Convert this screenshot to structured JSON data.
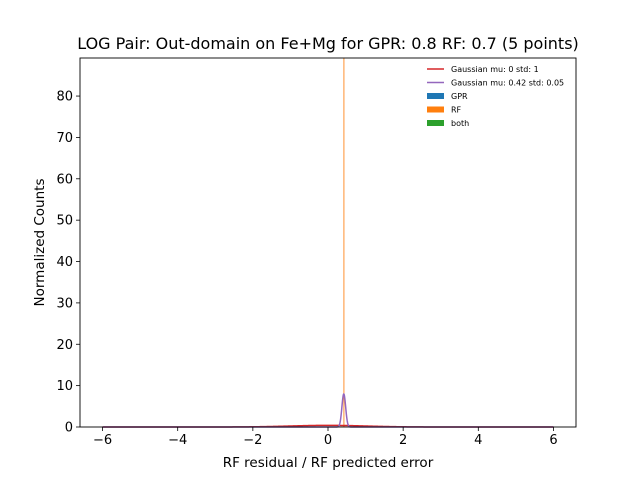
{
  "chart_data": {
    "type": "line",
    "title": "LOG Pair: Out-domain on Fe+Mg for GPR: 0.8 RF: 0.7 (5 points)",
    "xlabel": "RF residual / RF predicted error",
    "ylabel": "Normalized Counts",
    "xlim": [
      -6.6,
      6.6
    ],
    "ylim": [
      0,
      89.2
    ],
    "x_ticks": [
      -6,
      -4,
      -2,
      0,
      2,
      4,
      6
    ],
    "x_tick_labels": [
      "−6",
      "−4",
      "−2",
      "0",
      "2",
      "4",
      "6"
    ],
    "y_ticks": [
      0,
      10,
      20,
      30,
      40,
      50,
      60,
      70,
      80
    ],
    "y_tick_labels": [
      "0",
      "10",
      "20",
      "30",
      "40",
      "50",
      "60",
      "70",
      "80"
    ],
    "grid": false,
    "legend_position": "top-right",
    "series": [
      {
        "name": "Gaussian mu: 0 std: 1",
        "kind": "gaussian",
        "mu": 0,
        "std": 1,
        "color": "#d62728"
      },
      {
        "name": "Gaussian mu: 0.42 std: 0.05",
        "kind": "gaussian",
        "mu": 0.42,
        "std": 0.05,
        "color": "#9467bd"
      },
      {
        "name": "GPR",
        "kind": "histogram",
        "color": "#1f77b4",
        "bins": []
      },
      {
        "name": "RF",
        "kind": "histogram",
        "color": "#ff7f0e",
        "bins": [
          {
            "x0": 0.41,
            "x1": 0.43,
            "value": 89.2
          }
        ]
      },
      {
        "name": "both",
        "kind": "histogram",
        "color": "#2ca02c",
        "bins": []
      }
    ]
  }
}
